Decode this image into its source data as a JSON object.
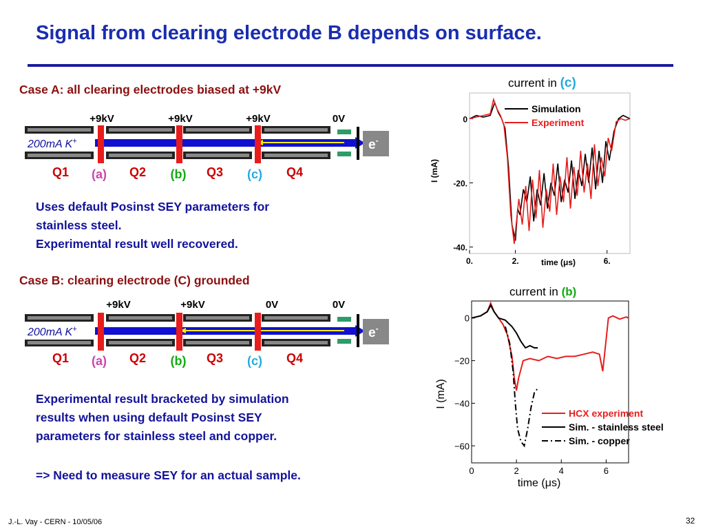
{
  "slide": {
    "title": "Signal from clearing electrode B depends on surface.",
    "footer_left": "J.-L. Vay - CERN - 10/05/06",
    "page_number": "32"
  },
  "case_a": {
    "heading": "Case A: all clearing electrodes biased at +9kV",
    "voltages": [
      "+9kV",
      "+9kV",
      "+9kV",
      "0V"
    ],
    "beam_label": "200mA K",
    "beam_sup": "+",
    "electron_label": "e",
    "electron_sup": "-",
    "quads": [
      "Q1",
      "Q2",
      "Q3",
      "Q4"
    ],
    "electrodes": [
      "(a)",
      "(b)",
      "(c)"
    ],
    "text_lines": [
      "Uses default Posinst SEY parameters for",
      "stainless steel.",
      "Experimental result well recovered."
    ]
  },
  "case_b": {
    "heading": "Case B: clearing electrode (C) grounded",
    "voltages": [
      "+9kV",
      "+9kV",
      "0V",
      "0V"
    ],
    "beam_label": "200mA K",
    "beam_sup": "+",
    "electron_label": "e",
    "electron_sup": "-",
    "quads": [
      "Q1",
      "Q2",
      "Q3",
      "Q4"
    ],
    "electrodes": [
      "(a)",
      "(b)",
      "(c)"
    ],
    "text_lines": [
      "Experimental result bracketed by simulation",
      "results when using default Posinst SEY",
      "parameters for stainless steel and copper."
    ],
    "conclusion": "=> Need to measure SEY for an actual sample."
  },
  "colors": {
    "title": "#1a2db0",
    "case_heading": "#8b1010",
    "body_text": "#13139a",
    "quad_label": "#cc0000",
    "electrode_a": "#cc44aa",
    "electrode_b": "#11aa11",
    "electrode_c": "#22aadd",
    "beam": "#1010d0",
    "electron_arrow": "#ffee00",
    "experiment_red": "#e81c1c"
  },
  "chart_data": [
    {
      "type": "line",
      "title_prefix": "current in ",
      "title_highlight": "(c)",
      "xlabel": "time (μs)",
      "ylabel": "I (mA)",
      "xlim": [
        0,
        7
      ],
      "ylim": [
        -42,
        8
      ],
      "xticks": [
        "0.",
        "2.",
        "6."
      ],
      "yticks": [
        "0",
        "-20.",
        "-40."
      ],
      "legend_position": "top-right",
      "series": [
        {
          "name": "Simulation",
          "color": "#000000",
          "x": [
            0,
            0.3,
            0.6,
            0.9,
            1.1,
            1.25,
            1.4,
            1.55,
            1.7,
            1.85,
            2.0,
            2.1,
            2.2,
            2.35,
            2.5,
            2.65,
            2.8,
            2.95,
            3.1,
            3.25,
            3.4,
            3.55,
            3.7,
            3.85,
            4.0,
            4.15,
            4.3,
            4.45,
            4.6,
            4.75,
            4.9,
            5.05,
            5.2,
            5.35,
            5.5,
            5.65,
            5.8,
            5.95,
            6.1,
            6.3,
            6.5,
            6.7,
            7.0
          ],
          "y": [
            0,
            1,
            0.5,
            1,
            5,
            2,
            0,
            -3,
            -15,
            -33,
            -38,
            -28,
            -30,
            -22,
            -26,
            -18,
            -32,
            -22,
            -27,
            -17,
            -28,
            -20,
            -24,
            -14,
            -26,
            -19,
            -23,
            -13,
            -25,
            -16,
            -21,
            -11,
            -20,
            -9,
            -22,
            -10,
            -20,
            -7,
            -13,
            -4,
            0,
            1,
            0
          ]
        },
        {
          "name": "Experiment",
          "color": "#e81c1c",
          "x": [
            0,
            0.3,
            0.6,
            0.9,
            1.05,
            1.2,
            1.35,
            1.5,
            1.65,
            1.8,
            1.95,
            2.05,
            2.15,
            2.3,
            2.45,
            2.6,
            2.75,
            2.9,
            3.05,
            3.2,
            3.35,
            3.5,
            3.65,
            3.8,
            3.95,
            4.1,
            4.25,
            4.4,
            4.55,
            4.7,
            4.85,
            5.0,
            5.15,
            5.3,
            5.45,
            5.6,
            5.75,
            5.9,
            6.05,
            6.2,
            6.4,
            6.6,
            6.8,
            7.0
          ],
          "y": [
            0,
            0.5,
            1,
            1.5,
            6,
            3,
            1,
            -2,
            -12,
            -30,
            -39,
            -32,
            -25,
            -33,
            -21,
            -35,
            -19,
            -31,
            -16,
            -34,
            -22,
            -29,
            -14,
            -30,
            -18,
            -26,
            -12,
            -28,
            -15,
            -24,
            -10,
            -23,
            -14,
            -25,
            -8,
            -21,
            -12,
            -18,
            -6,
            -10,
            -1,
            0,
            -0.5,
            0
          ]
        }
      ]
    },
    {
      "type": "line",
      "title_prefix": "current in ",
      "title_highlight": "(b)",
      "xlabel": "time (μs)",
      "ylabel": "I (mA)",
      "xlim": [
        0,
        7
      ],
      "ylim": [
        -68,
        8
      ],
      "xticks": [
        0,
        2,
        4,
        6
      ],
      "yticks": [
        0,
        -20,
        -40,
        -60
      ],
      "legend_position": "bottom-right",
      "series": [
        {
          "name": "HCX experiment",
          "color": "#e81c1c",
          "dash": "solid",
          "x": [
            0,
            0.4,
            0.7,
            0.85,
            1.0,
            1.2,
            1.4,
            1.6,
            1.8,
            1.9,
            2.0,
            2.1,
            2.3,
            2.6,
            3.0,
            3.4,
            3.8,
            4.2,
            4.6,
            5.0,
            5.4,
            5.7,
            5.85,
            6.0,
            6.1,
            6.3,
            6.6,
            6.9,
            7.0
          ],
          "y": [
            0,
            1,
            3,
            7,
            3,
            0,
            -3,
            -8,
            -18,
            -28,
            -34,
            -28,
            -20,
            -19,
            -20,
            -18,
            -19,
            -18,
            -18,
            -17,
            -16,
            -17,
            -25,
            -10,
            0,
            1,
            -0.5,
            0.5,
            0
          ]
        },
        {
          "name": "Sim. - stainless steel",
          "color": "#000000",
          "dash": "solid",
          "x": [
            0,
            0.4,
            0.7,
            0.85,
            1.0,
            1.2,
            1.5,
            1.8,
            2.0,
            2.2,
            2.4,
            2.6,
            2.8,
            2.95
          ],
          "y": [
            0,
            1,
            3,
            6,
            3,
            0,
            -1,
            -4,
            -7,
            -11,
            -14,
            -13,
            -14,
            -14
          ]
        },
        {
          "name": "Sim. - copper",
          "color": "#000000",
          "dash": "dashdot",
          "x": [
            1.5,
            1.7,
            1.85,
            1.95,
            2.05,
            2.2,
            2.35,
            2.5,
            2.65,
            2.8,
            2.95
          ],
          "y": [
            -4,
            -12,
            -25,
            -40,
            -52,
            -58,
            -60,
            -52,
            -42,
            -35,
            -33
          ]
        }
      ]
    }
  ]
}
